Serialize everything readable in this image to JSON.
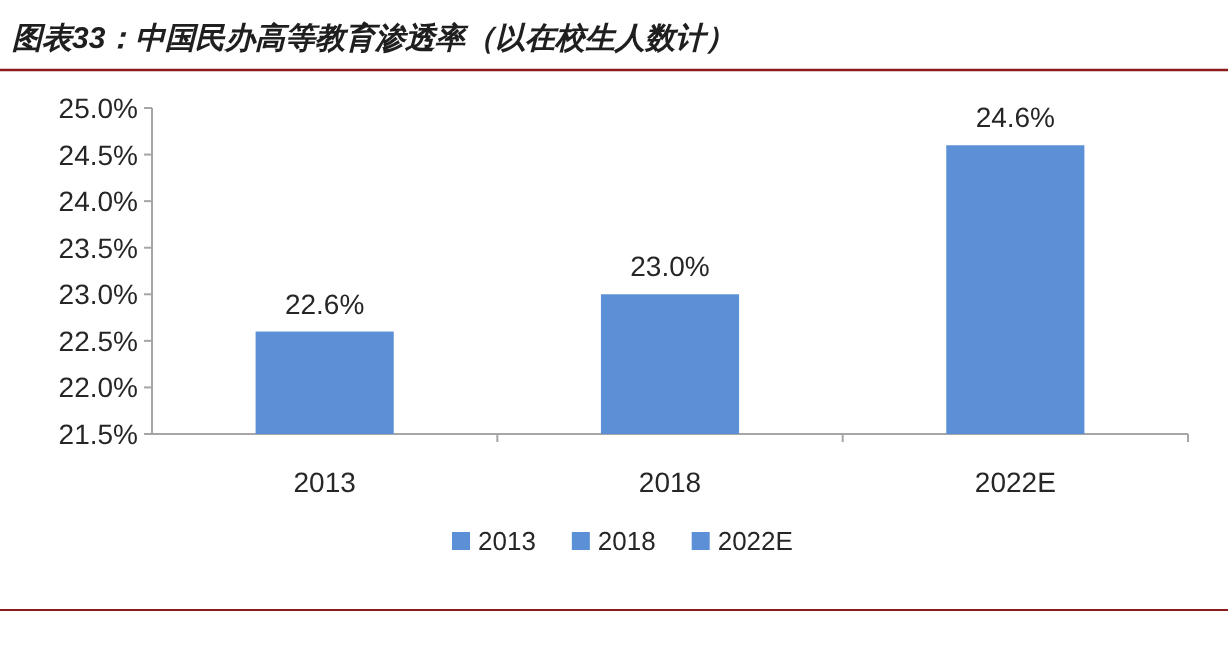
{
  "chart_data": {
    "type": "bar",
    "title": "图表33：中国民办高等教育渗透率（以在校生人数计）",
    "categories": [
      "2013",
      "2018",
      "2022E"
    ],
    "series": [
      {
        "name": "2013",
        "color": "#5b8fd6",
        "values": [
          22.6,
          null,
          null
        ],
        "value_labels": [
          "22.6%",
          null,
          null
        ]
      },
      {
        "name": "2018",
        "color": "#5b8fd6",
        "values": [
          null,
          23.0,
          null
        ],
        "value_labels": [
          null,
          "23.0%",
          null
        ]
      },
      {
        "name": "2022E",
        "color": "#5b8fd6",
        "values": [
          null,
          null,
          24.6
        ],
        "value_labels": [
          null,
          null,
          "24.6%"
        ]
      }
    ],
    "ylim": [
      21.5,
      25.0
    ],
    "yticks": [
      {
        "value": 21.5,
        "label": "21.5%"
      },
      {
        "value": 22.0,
        "label": "22.0%"
      },
      {
        "value": 22.5,
        "label": "22.5%"
      },
      {
        "value": 23.0,
        "label": "23.0%"
      },
      {
        "value": 23.5,
        "label": "23.5%"
      },
      {
        "value": 24.0,
        "label": "24.0%"
      },
      {
        "value": 24.5,
        "label": "24.5%"
      },
      {
        "value": 25.0,
        "label": "25.0%"
      }
    ],
    "grid": false,
    "legend": "bottom"
  }
}
